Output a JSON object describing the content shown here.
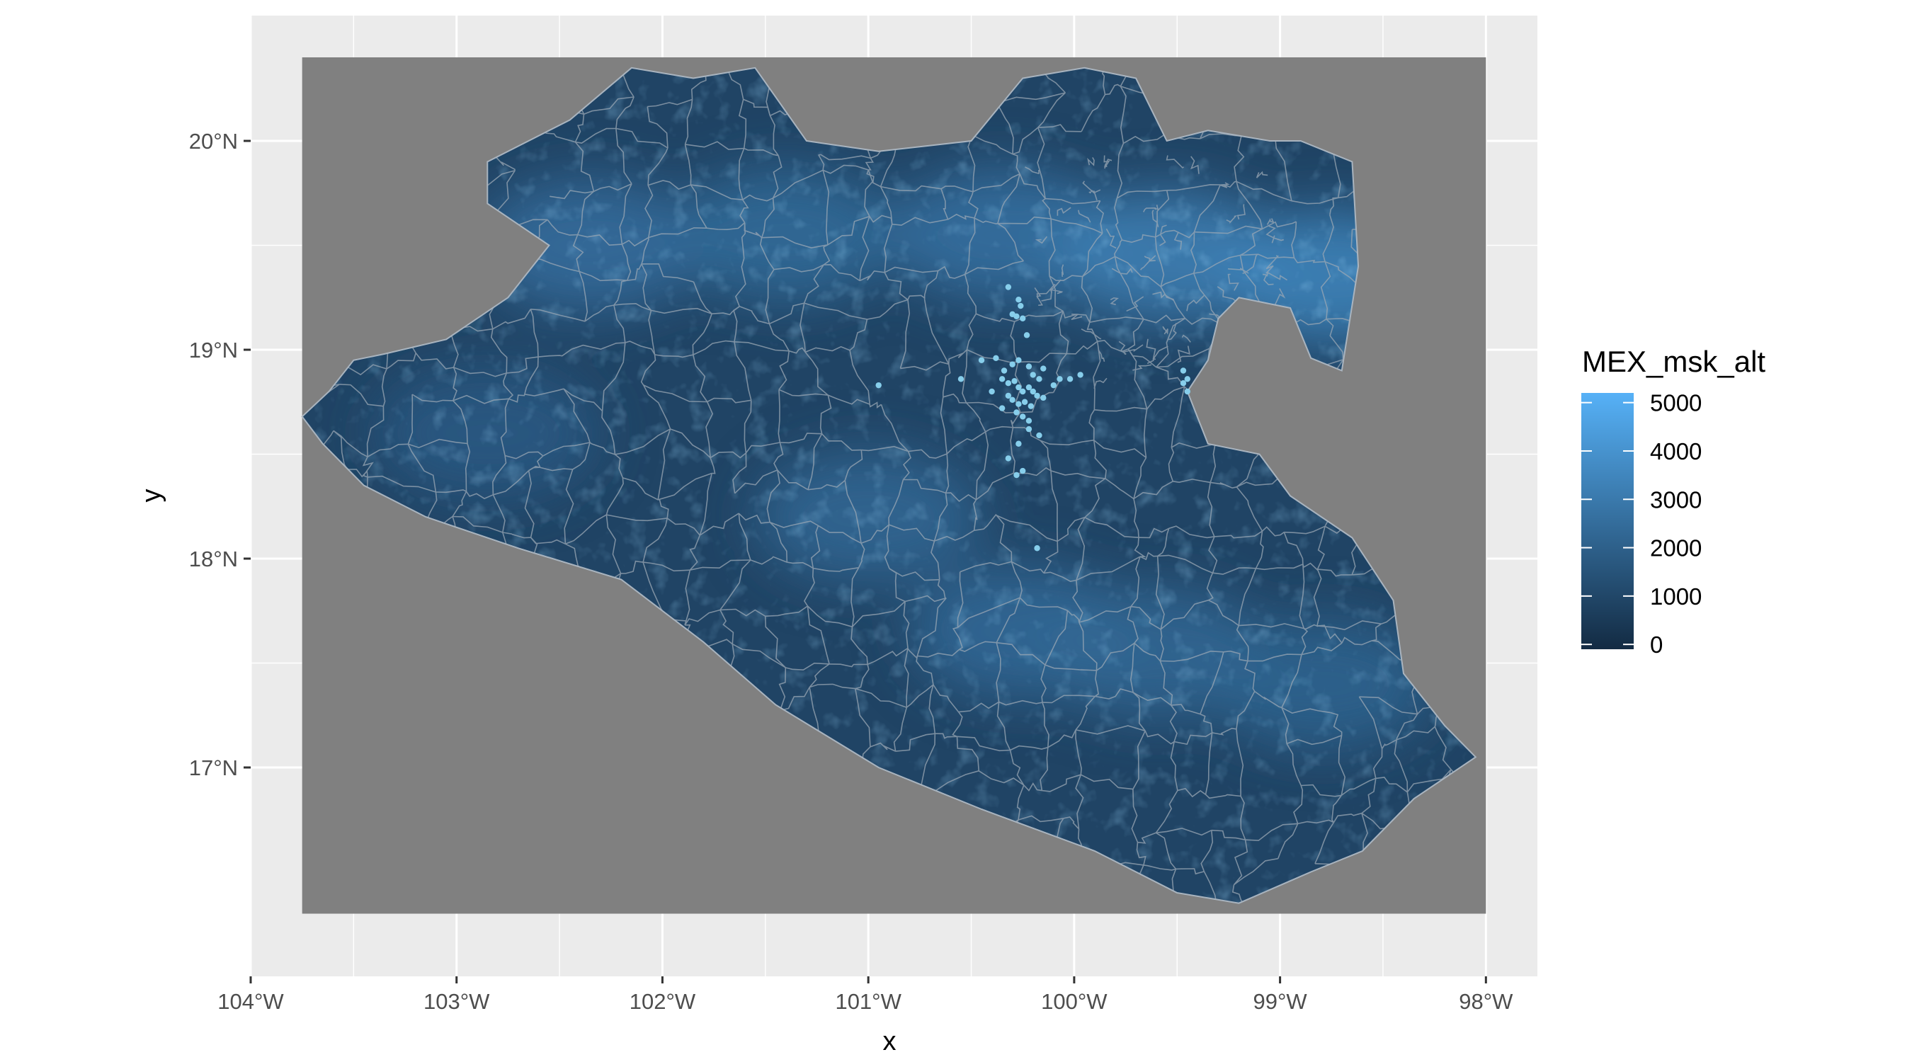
{
  "chart_data": {
    "type": "map",
    "xlabel": "x",
    "ylabel": "y",
    "xlim": [
      -104.0,
      -97.75
    ],
    "ylim": [
      16.0,
      20.6
    ],
    "raster_extent": {
      "x": [
        -103.75,
        -98.0
      ],
      "y": [
        16.3,
        20.4
      ]
    },
    "x_ticks": [
      {
        "value": -104,
        "label": "104°W"
      },
      {
        "value": -103,
        "label": "103°W"
      },
      {
        "value": -102,
        "label": "102°W"
      },
      {
        "value": -101,
        "label": "101°W"
      },
      {
        "value": -100,
        "label": "100°W"
      },
      {
        "value": -99,
        "label": "99°W"
      },
      {
        "value": -98,
        "label": "98°W"
      }
    ],
    "y_ticks": [
      {
        "value": 17,
        "label": "17°N"
      },
      {
        "value": 18,
        "label": "18°N"
      },
      {
        "value": 19,
        "label": "19°N"
      },
      {
        "value": 20,
        "label": "20°N"
      }
    ],
    "grid": true,
    "background": {
      "panel": "#ebebeb",
      "raster_na": "#808080"
    },
    "legend": {
      "title": "MEX_msk_alt",
      "position": "right",
      "low_color": "#132b43",
      "high_color": "#56b1f7",
      "range": [
        -100,
        5200
      ],
      "breaks": [
        {
          "value": 5000,
          "label": "5000"
        },
        {
          "value": 4000,
          "label": "4000"
        },
        {
          "value": 3000,
          "label": "3000"
        },
        {
          "value": 2000,
          "label": "2000"
        },
        {
          "value": 1000,
          "label": "1000"
        },
        {
          "value": 0,
          "label": "0"
        }
      ]
    },
    "region_outline": [
      [
        -103.75,
        18.68
      ],
      [
        -103.62,
        18.8
      ],
      [
        -103.5,
        18.95
      ],
      [
        -103.35,
        18.98
      ],
      [
        -103.05,
        19.05
      ],
      [
        -102.75,
        19.25
      ],
      [
        -102.55,
        19.5
      ],
      [
        -102.85,
        19.7
      ],
      [
        -102.85,
        19.9
      ],
      [
        -102.45,
        20.1
      ],
      [
        -102.15,
        20.35
      ],
      [
        -101.85,
        20.3
      ],
      [
        -101.55,
        20.35
      ],
      [
        -101.3,
        20.0
      ],
      [
        -100.95,
        19.95
      ],
      [
        -100.5,
        20.0
      ],
      [
        -100.25,
        20.3
      ],
      [
        -99.95,
        20.35
      ],
      [
        -99.7,
        20.3
      ],
      [
        -99.55,
        20.0
      ],
      [
        -99.35,
        20.05
      ],
      [
        -99.05,
        20.0
      ],
      [
        -98.9,
        20.0
      ],
      [
        -98.65,
        19.9
      ],
      [
        -98.62,
        19.4
      ],
      [
        -98.7,
        18.9
      ],
      [
        -98.85,
        18.96
      ],
      [
        -98.95,
        19.2
      ],
      [
        -99.2,
        19.25
      ],
      [
        -99.3,
        19.15
      ],
      [
        -99.35,
        18.95
      ],
      [
        -99.45,
        18.8
      ],
      [
        -99.35,
        18.55
      ],
      [
        -99.1,
        18.5
      ],
      [
        -98.95,
        18.3
      ],
      [
        -98.65,
        18.1
      ],
      [
        -98.45,
        17.8
      ],
      [
        -98.4,
        17.45
      ],
      [
        -98.2,
        17.2
      ],
      [
        -98.05,
        17.05
      ],
      [
        -98.35,
        16.85
      ],
      [
        -98.6,
        16.6
      ],
      [
        -98.85,
        16.5
      ],
      [
        -99.2,
        16.35
      ],
      [
        -99.5,
        16.4
      ],
      [
        -99.9,
        16.6
      ],
      [
        -100.45,
        16.8
      ],
      [
        -100.95,
        17.0
      ],
      [
        -101.45,
        17.3
      ],
      [
        -101.8,
        17.6
      ],
      [
        -102.2,
        17.9
      ],
      [
        -102.7,
        18.05
      ],
      [
        -103.15,
        18.2
      ],
      [
        -103.45,
        18.35
      ],
      [
        -103.65,
        18.55
      ]
    ],
    "highland_zones": [
      {
        "lon": -102.35,
        "lat": 19.5,
        "alt": 2600
      },
      {
        "lon": -101.4,
        "lat": 19.55,
        "alt": 2500
      },
      {
        "lon": -100.35,
        "lat": 19.55,
        "alt": 2700
      },
      {
        "lon": -99.55,
        "lat": 19.45,
        "alt": 3300
      },
      {
        "lon": -98.75,
        "lat": 19.35,
        "alt": 3500
      },
      {
        "lon": -101.0,
        "lat": 18.2,
        "alt": 2300
      },
      {
        "lon": -100.25,
        "lat": 17.65,
        "alt": 2400
      },
      {
        "lon": -99.6,
        "lat": 17.55,
        "alt": 2300
      },
      {
        "lon": -98.8,
        "lat": 17.4,
        "alt": 2200
      },
      {
        "lon": -102.85,
        "lat": 18.6,
        "alt": 1800
      }
    ],
    "occurrence_points": [
      [
        -100.32,
        19.3
      ],
      [
        -100.27,
        19.24
      ],
      [
        -100.26,
        19.21
      ],
      [
        -100.3,
        19.17
      ],
      [
        -100.28,
        19.16
      ],
      [
        -100.25,
        19.15
      ],
      [
        -100.23,
        19.07
      ],
      [
        -100.45,
        18.95
      ],
      [
        -100.38,
        18.96
      ],
      [
        -100.34,
        18.9
      ],
      [
        -100.3,
        18.93
      ],
      [
        -100.27,
        18.95
      ],
      [
        -100.22,
        18.92
      ],
      [
        -100.2,
        18.88
      ],
      [
        -100.17,
        18.86
      ],
      [
        -100.15,
        18.91
      ],
      [
        -100.35,
        18.86
      ],
      [
        -100.32,
        18.84
      ],
      [
        -100.29,
        18.85
      ],
      [
        -100.27,
        18.82
      ],
      [
        -100.25,
        18.8
      ],
      [
        -100.22,
        18.82
      ],
      [
        -100.2,
        18.8
      ],
      [
        -100.32,
        18.78
      ],
      [
        -100.3,
        18.76
      ],
      [
        -100.27,
        18.74
      ],
      [
        -100.24,
        18.75
      ],
      [
        -100.21,
        18.73
      ],
      [
        -100.28,
        18.7
      ],
      [
        -100.25,
        18.68
      ],
      [
        -100.22,
        18.66
      ],
      [
        -100.35,
        18.72
      ],
      [
        -100.18,
        18.78
      ],
      [
        -100.15,
        18.77
      ],
      [
        -100.1,
        18.83
      ],
      [
        -100.07,
        18.86
      ],
      [
        -100.02,
        18.86
      ],
      [
        -99.97,
        18.88
      ],
      [
        -100.55,
        18.86
      ],
      [
        -100.95,
        18.83
      ],
      [
        -100.22,
        18.62
      ],
      [
        -100.27,
        18.55
      ],
      [
        -100.17,
        18.59
      ],
      [
        -100.32,
        18.48
      ],
      [
        -100.28,
        18.4
      ],
      [
        -100.25,
        18.42
      ],
      [
        -100.18,
        18.05
      ],
      [
        -99.47,
        18.9
      ],
      [
        -99.45,
        18.86
      ],
      [
        -99.47,
        18.84
      ],
      [
        -99.45,
        18.8
      ],
      [
        -100.4,
        18.8
      ]
    ]
  }
}
